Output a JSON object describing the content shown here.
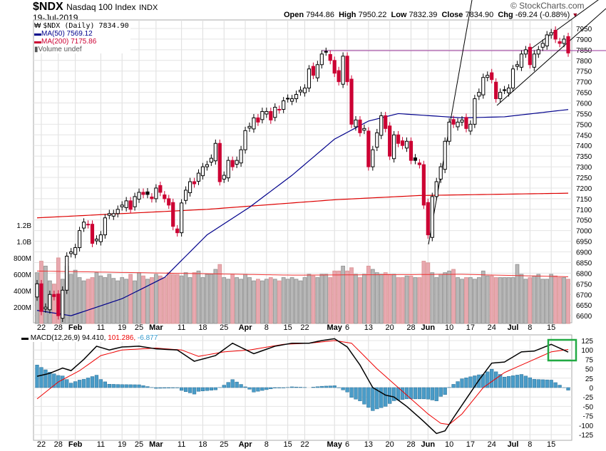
{
  "header": {
    "symbol": "$NDX",
    "name": "Nasdaq 100 Index",
    "exchange": "INDX",
    "date": "19-Jul-2019",
    "watermark": "© StockCharts.com",
    "open_label": "Open",
    "open": "7944.86",
    "high_label": "High",
    "high": "7950.22",
    "low_label": "Low",
    "low": "7832.39",
    "close_label": "Close",
    "close": "7834.90",
    "chg_label": "Chg",
    "chg": "-69.24 (-0.88%)"
  },
  "legend": {
    "price": "$NDX (Daily) 7834.90",
    "ma50": "MA(50) 7569.12",
    "ma200": "MA(200) 7175.86",
    "volume": "Volume undef",
    "macd_name": "MACD(12,26,9)",
    "macd_val": "94.410,",
    "signal_val": "101.286,",
    "hist_val": "-6.877"
  },
  "colors": {
    "up": "#000000",
    "down": "#cc0033",
    "ma50": "#00008b",
    "ma200": "#dd0000",
    "vol_up": "#b8b8b8",
    "vol_down": "#e8a8b0",
    "hist": "#4a9cc8",
    "highlight": "#22aa44",
    "hline": "#993399"
  },
  "chart_data": [
    {
      "type": "candlestick",
      "title": "$NDX Nasdaq 100 Index (Daily)",
      "ylim": [
        6580,
        7980
      ],
      "yticks": [
        6600,
        6650,
        6700,
        6750,
        6800,
        6850,
        6900,
        6950,
        7000,
        7050,
        7100,
        7150,
        7200,
        7250,
        7300,
        7350,
        7400,
        7450,
        7500,
        7550,
        7600,
        7650,
        7700,
        7750,
        7800,
        7850,
        7900,
        7950
      ],
      "xticks": [
        {
          "i": 1,
          "label": "22"
        },
        {
          "i": 5,
          "label": "28"
        },
        {
          "i": 9,
          "label": "Feb",
          "bold": true
        },
        {
          "i": 15,
          "label": "11"
        },
        {
          "i": 20,
          "label": "19"
        },
        {
          "i": 24,
          "label": "25"
        },
        {
          "i": 28,
          "label": "Mar",
          "bold": true
        },
        {
          "i": 34,
          "label": "11"
        },
        {
          "i": 39,
          "label": "18"
        },
        {
          "i": 44,
          "label": "25"
        },
        {
          "i": 49,
          "label": "Apr",
          "bold": true
        },
        {
          "i": 54,
          "label": "8"
        },
        {
          "i": 59,
          "label": "15"
        },
        {
          "i": 63,
          "label": "22"
        },
        {
          "i": 70,
          "label": "May",
          "bold": true
        },
        {
          "i": 73,
          "label": "6"
        },
        {
          "i": 78,
          "label": "13"
        },
        {
          "i": 83,
          "label": "20"
        },
        {
          "i": 88,
          "label": "28"
        },
        {
          "i": 92,
          "label": "Jun",
          "bold": true
        },
        {
          "i": 97,
          "label": "10"
        },
        {
          "i": 102,
          "label": "17"
        },
        {
          "i": 107,
          "label": "24"
        },
        {
          "i": 112,
          "label": "Jul",
          "bold": true
        },
        {
          "i": 116,
          "label": "8"
        },
        {
          "i": 121,
          "label": "15"
        }
      ],
      "close": [
        6750,
        6620,
        6640,
        6700,
        6690,
        6600,
        6720,
        6880,
        6900,
        6920,
        7000,
        7040,
        7030,
        6940,
        6960,
        6980,
        7060,
        7080,
        7080,
        7100,
        7120,
        7140,
        7100,
        7160,
        7180,
        7170,
        7170,
        7150,
        7200,
        7180,
        7150,
        7120,
        7020,
        6990,
        7130,
        7190,
        7230,
        7220,
        7270,
        7300,
        7310,
        7340,
        7410,
        7230,
        7260,
        7330,
        7300,
        7330,
        7380,
        7470,
        7490,
        7530,
        7510,
        7560,
        7560,
        7520,
        7580,
        7570,
        7610,
        7620,
        7620,
        7640,
        7660,
        7670,
        7760,
        7730,
        7780,
        7830,
        7840,
        7800,
        7740,
        7700,
        7820,
        7700,
        7500,
        7520,
        7460,
        7480,
        7300,
        7380,
        7460,
        7540,
        7480,
        7350,
        7450,
        7410,
        7400,
        7420,
        7330,
        7330,
        7310,
        7120,
        6980,
        7160,
        7230,
        7300,
        7420,
        7510,
        7500,
        7510,
        7520,
        7480,
        7500,
        7620,
        7650,
        7720,
        7730,
        7710,
        7620,
        7650,
        7660,
        7670,
        7760,
        7780,
        7830,
        7850,
        7780,
        7830,
        7850,
        7880,
        7920,
        7930,
        7900,
        7880,
        7900,
        7835
      ],
      "ma50": [
        [
          0,
          6625
        ],
        [
          8,
          6600
        ],
        [
          20,
          6680
        ],
        [
          30,
          6780
        ],
        [
          40,
          6980
        ],
        [
          50,
          7110
        ],
        [
          60,
          7260
        ],
        [
          70,
          7430
        ],
        [
          78,
          7515
        ],
        [
          85,
          7550
        ],
        [
          100,
          7530
        ],
        [
          110,
          7535
        ],
        [
          125,
          7569.12
        ]
      ],
      "ma200": [
        [
          0,
          7060
        ],
        [
          40,
          7100
        ],
        [
          70,
          7145
        ],
        [
          90,
          7165
        ],
        [
          125,
          7175.86
        ]
      ],
      "hline": 7846,
      "volume_axis": [
        {
          "v": 200,
          "label": "200M"
        },
        {
          "v": 400,
          "label": "400M"
        },
        {
          "v": 600,
          "label": "600M"
        },
        {
          "v": 800,
          "label": "800M"
        },
        {
          "v": 1000,
          "label": "1.0B"
        },
        {
          "v": 1200,
          "label": "1.2B"
        }
      ],
      "volume_M": [
        620,
        760,
        700,
        520,
        480,
        800,
        540,
        700,
        600,
        650,
        560,
        520,
        540,
        560,
        620,
        580,
        560,
        600,
        550,
        520,
        560,
        540,
        600,
        520,
        620,
        580,
        540,
        560,
        600,
        580,
        560,
        620,
        600,
        600,
        580,
        620,
        560,
        620,
        640,
        560,
        600,
        600,
        660,
        720,
        560,
        540,
        600,
        560,
        540,
        600,
        560,
        520,
        540,
        520,
        540,
        560,
        540,
        520,
        560,
        540,
        560,
        540,
        520,
        560,
        600,
        580,
        560,
        600,
        600,
        560,
        640,
        640,
        700,
        640,
        680,
        600,
        560,
        600,
        700,
        660,
        620,
        600,
        620,
        600,
        600,
        560,
        560,
        580,
        580,
        560,
        560,
        760,
        740,
        620,
        560,
        600,
        620,
        640,
        660,
        560,
        540,
        560,
        560,
        540,
        560,
        640,
        580,
        580,
        560,
        560,
        560,
        560,
        560,
        720,
        600,
        540,
        560,
        580,
        600,
        540,
        540,
        600,
        580,
        560,
        560,
        540
      ],
      "volume_ma_M": [
        [
          0,
          640
        ],
        [
          60,
          590
        ],
        [
          100,
          600
        ],
        [
          125,
          570
        ]
      ]
    },
    {
      "type": "line",
      "title": "MACD(12,26,9)",
      "ylim": [
        -135,
        135
      ],
      "yticks": [
        -125,
        -100,
        -75,
        -50,
        -25,
        0,
        25,
        50,
        75,
        100,
        125
      ],
      "macd": [
        [
          0,
          30
        ],
        [
          3,
          38
        ],
        [
          6,
          52
        ],
        [
          8,
          45
        ],
        [
          11,
          75
        ],
        [
          14,
          110
        ],
        [
          17,
          100
        ],
        [
          20,
          108
        ],
        [
          24,
          110
        ],
        [
          28,
          103
        ],
        [
          33,
          100
        ],
        [
          37,
          70
        ],
        [
          42,
          85
        ],
        [
          46,
          118
        ],
        [
          51,
          90
        ],
        [
          56,
          110
        ],
        [
          60,
          118
        ],
        [
          64,
          118
        ],
        [
          67,
          125
        ],
        [
          70,
          130
        ],
        [
          73,
          108
        ],
        [
          76,
          60
        ],
        [
          79,
          0
        ],
        [
          82,
          -20
        ],
        [
          84,
          -25
        ],
        [
          87,
          -50
        ],
        [
          91,
          -90
        ],
        [
          94,
          -122
        ],
        [
          96,
          -115
        ],
        [
          98,
          -80
        ],
        [
          101,
          -30
        ],
        [
          104,
          20
        ],
        [
          107,
          65
        ],
        [
          110,
          68
        ],
        [
          114,
          95
        ],
        [
          117,
          97
        ],
        [
          121,
          115
        ],
        [
          125,
          94.41
        ]
      ],
      "signal": [
        [
          0,
          -30
        ],
        [
          5,
          15
        ],
        [
          10,
          45
        ],
        [
          15,
          85
        ],
        [
          20,
          100
        ],
        [
          28,
          105
        ],
        [
          34,
          100
        ],
        [
          38,
          83
        ],
        [
          44,
          95
        ],
        [
          50,
          100
        ],
        [
          58,
          115
        ],
        [
          64,
          118
        ],
        [
          70,
          125
        ],
        [
          74,
          118
        ],
        [
          80,
          50
        ],
        [
          86,
          -10
        ],
        [
          92,
          -70
        ],
        [
          95,
          -95
        ],
        [
          97,
          -98
        ],
        [
          100,
          -70
        ],
        [
          105,
          0
        ],
        [
          110,
          40
        ],
        [
          116,
          70
        ],
        [
          121,
          95
        ],
        [
          125,
          101.286
        ]
      ]
    }
  ]
}
